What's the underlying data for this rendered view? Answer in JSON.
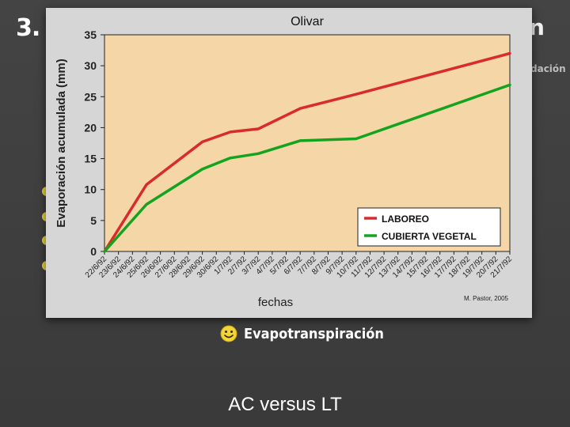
{
  "slide": {
    "number": "3.",
    "title_fragment": "n",
    "subtitle_fragment": "dación",
    "bullet_text": "Evapotranspiración",
    "caption": "AC versus LT"
  },
  "colors": {
    "plot_bg": "#f5d6a6",
    "card_bg": "#d6d6d6",
    "laboreo": "#d92b2b",
    "cubierta": "#14a31e",
    "bullet": "#e8d23a"
  },
  "icons": {
    "bullet": "smiley-icon"
  },
  "chart_data": {
    "type": "line",
    "title": "Olivar",
    "xlabel": "fechas",
    "ylabel": "Evaporación acumulada (mm)",
    "credit": "M. Pastor, 2005",
    "ylim": [
      0,
      35
    ],
    "yticks": [
      "0",
      "5",
      "10",
      "15",
      "20",
      "25",
      "30",
      "35"
    ],
    "grid": false,
    "legend_position": "bottom-right",
    "categories": [
      "22/6/92",
      "23/6/92",
      "24/6/92",
      "25/6/92",
      "26/6/92",
      "27/6/92",
      "28/6/92",
      "29/6/92",
      "30/6/92",
      "1/7/92",
      "2/7/92",
      "3/7/92",
      "4/7/92",
      "5/7/92",
      "6/7/92",
      "7/7/92",
      "8/7/92",
      "9/7/92",
      "10/7/92",
      "11/7/92",
      "12/7/92",
      "13/7/92",
      "14/7/92",
      "15/7/92",
      "16/7/92",
      "17/7/92",
      "18/7/92",
      "19/7/92",
      "20/7/92",
      "21/7/92"
    ],
    "series": [
      {
        "name": "LABOREO",
        "color": "#d92b2b",
        "points": [
          {
            "x": "22/6/92",
            "y": 0
          },
          {
            "x": "25/6/92",
            "y": 10.8
          },
          {
            "x": "29/6/92",
            "y": 17.7
          },
          {
            "x": "1/7/92",
            "y": 19.3
          },
          {
            "x": "3/7/92",
            "y": 19.8
          },
          {
            "x": "6/7/92",
            "y": 23.1
          },
          {
            "x": "10/7/92",
            "y": 25.4
          },
          {
            "x": "21/7/92",
            "y": 32.0
          }
        ]
      },
      {
        "name": "CUBIERTA VEGETAL",
        "color": "#14a31e",
        "points": [
          {
            "x": "22/6/92",
            "y": 0
          },
          {
            "x": "25/6/92",
            "y": 7.6
          },
          {
            "x": "29/6/92",
            "y": 13.3
          },
          {
            "x": "1/7/92",
            "y": 15.1
          },
          {
            "x": "3/7/92",
            "y": 15.8
          },
          {
            "x": "6/7/92",
            "y": 17.9
          },
          {
            "x": "10/7/92",
            "y": 18.2
          },
          {
            "x": "21/7/92",
            "y": 26.9
          }
        ]
      }
    ]
  }
}
